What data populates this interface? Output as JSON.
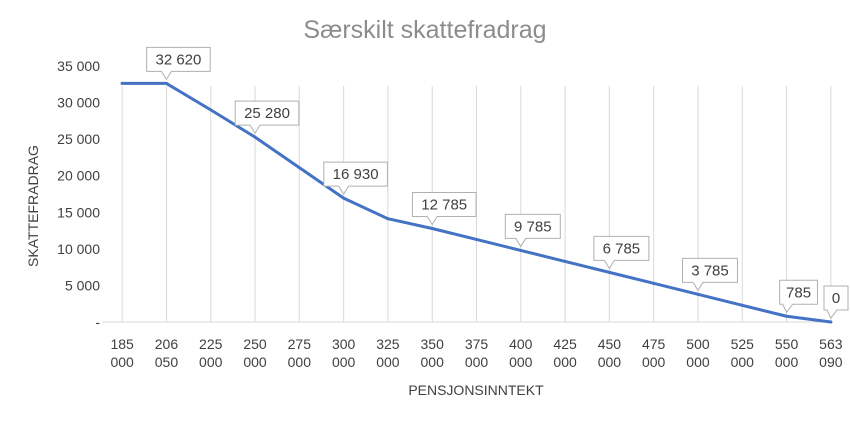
{
  "colors": {
    "line": "#4472c4",
    "grid": "#d9d9d9",
    "text": "#404040",
    "title": "#8c8c8c"
  },
  "chart_data": {
    "type": "line",
    "title": "Særskilt skattefradrag",
    "xlabel": "PENSJONSINNTEKT",
    "ylabel": "SKATTEFRADRAG",
    "categories": [
      [
        "185",
        "000"
      ],
      [
        "206",
        "050"
      ],
      [
        "225",
        "000"
      ],
      [
        "250",
        "000"
      ],
      [
        "275",
        "000"
      ],
      [
        "300",
        "000"
      ],
      [
        "325",
        "000"
      ],
      [
        "350",
        "000"
      ],
      [
        "375",
        "000"
      ],
      [
        "400",
        "000"
      ],
      [
        "425",
        "000"
      ],
      [
        "450",
        "000"
      ],
      [
        "475",
        "000"
      ],
      [
        "500",
        "000"
      ],
      [
        "525",
        "000"
      ],
      [
        "550",
        "000"
      ],
      [
        "563",
        "090"
      ]
    ],
    "series": [
      {
        "name": "Særskilt skattefradrag",
        "values": [
          32620,
          32620,
          29000,
          25280,
          21100,
          16930,
          14120,
          12785,
          11285,
          9785,
          8285,
          6785,
          5285,
          3785,
          2285,
          785,
          0
        ]
      }
    ],
    "data_labels": [
      {
        "index": 1,
        "text": "32 620"
      },
      {
        "index": 3,
        "text": "25 280"
      },
      {
        "index": 5,
        "text": "16 930"
      },
      {
        "index": 7,
        "text": "12 785"
      },
      {
        "index": 9,
        "text": "9 785"
      },
      {
        "index": 11,
        "text": "6 785"
      },
      {
        "index": 13,
        "text": "3 785"
      },
      {
        "index": 15,
        "text": "785"
      },
      {
        "index": 16,
        "text": "0"
      }
    ],
    "yticks": [
      {
        "value": 0,
        "label": "-"
      },
      {
        "value": 5000,
        "label": "5 000"
      },
      {
        "value": 10000,
        "label": "10 000"
      },
      {
        "value": 15000,
        "label": "15 000"
      },
      {
        "value": 20000,
        "label": "20 000"
      },
      {
        "value": 25000,
        "label": "25 000"
      },
      {
        "value": 30000,
        "label": "30 000"
      },
      {
        "value": 35000,
        "label": "35 000"
      }
    ],
    "ylim": [
      0,
      35000
    ],
    "grid": "vertical"
  }
}
